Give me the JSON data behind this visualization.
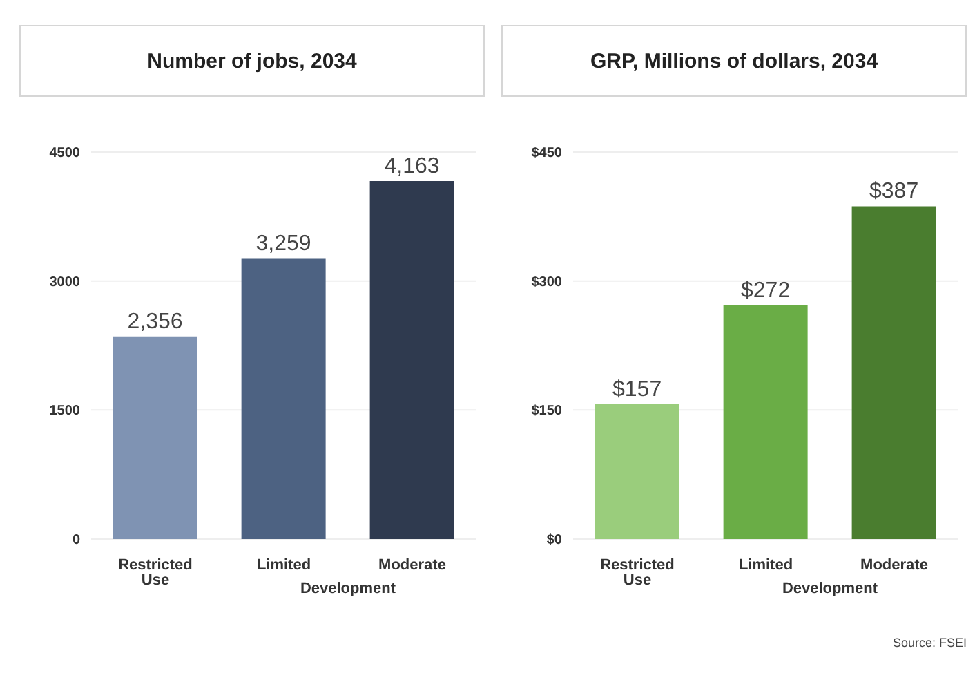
{
  "chart_data": [
    {
      "type": "bar",
      "title": "Number of jobs, 2034",
      "categories": [
        "Restricted Use",
        "Limited",
        "Moderate"
      ],
      "values": [
        2356,
        3259,
        4163
      ],
      "colors": [
        "#7f93b3",
        "#4d6282",
        "#2f3a4f"
      ],
      "value_labels": [
        "2,356",
        "3,259",
        "4,163"
      ],
      "ylim": [
        0,
        4500
      ],
      "yticks": [
        0,
        1500,
        3000,
        4500
      ],
      "grid": "y",
      "annotations": [
        "Development"
      ]
    },
    {
      "type": "bar",
      "title": "GRP, Millions of dollars, 2034",
      "categories": [
        "Restricted Use",
        "Limited",
        "Moderate"
      ],
      "values": [
        157,
        272,
        387
      ],
      "colors": [
        "#9acd7c",
        "#6aad46",
        "#4a7d2f"
      ],
      "value_labels": [
        "$157",
        "$272",
        "$387"
      ],
      "ylim": [
        0,
        450
      ],
      "yticks": [
        {
          "value": 0,
          "label": "$0"
        },
        {
          "value": 150,
          "label": "$150"
        },
        {
          "value": 300,
          "label": "$300"
        },
        {
          "value": 450,
          "label": "$450"
        }
      ],
      "grid": "y",
      "annotations": [
        "Development",
        "Source: FSEI"
      ]
    }
  ]
}
